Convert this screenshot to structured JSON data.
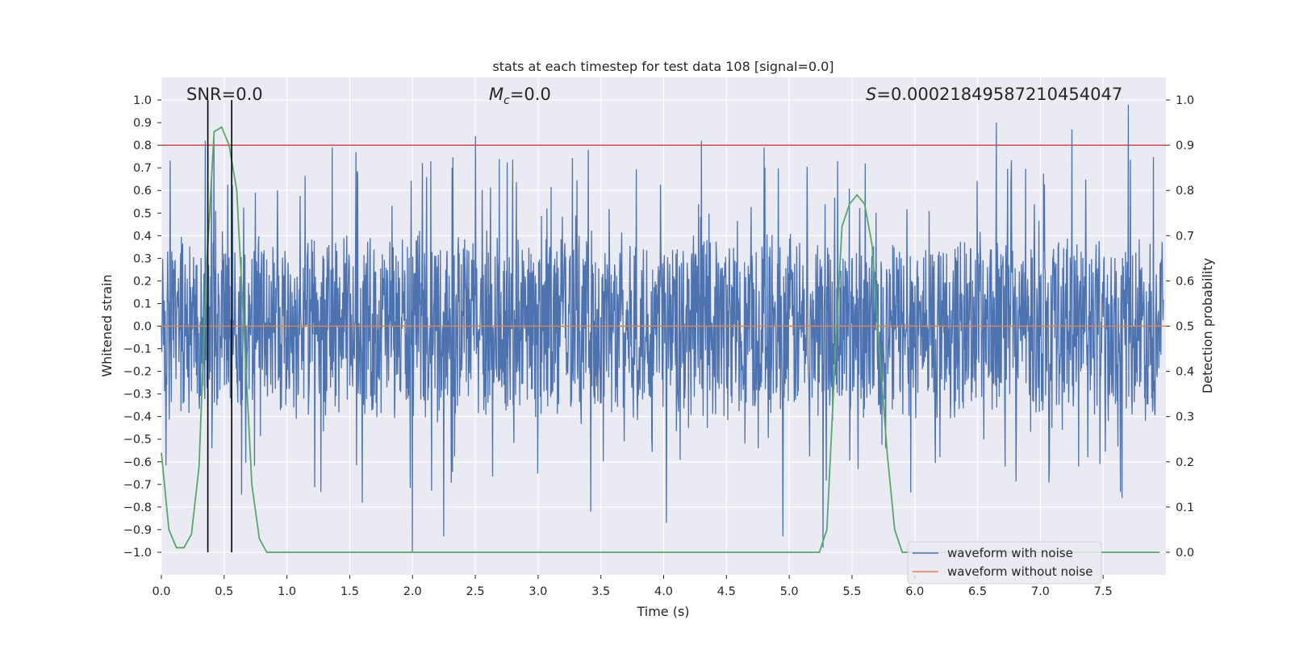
{
  "chart_data": {
    "type": "line",
    "title": "stats at each timestep for test data 108 [signal=0.0]",
    "xlabel": "Time (s)",
    "ylabel_left": "Whitened strain",
    "ylabel_right": "Detection probability",
    "xlim": [
      0.0,
      8.0
    ],
    "ylim_left": [
      -1.1,
      1.1
    ],
    "ylim_right": [
      -0.05,
      1.05
    ],
    "x_ticks": [
      "0.0",
      "0.5",
      "1.0",
      "1.5",
      "2.0",
      "2.5",
      "3.0",
      "3.5",
      "4.0",
      "4.5",
      "5.0",
      "5.5",
      "6.0",
      "6.5",
      "7.0",
      "7.5"
    ],
    "y_left_ticks": [
      "1.0",
      "0.9",
      "0.8",
      "0.7",
      "0.6",
      "0.5",
      "0.4",
      "0.3",
      "0.2",
      "0.1",
      "0.0",
      "−0.1",
      "−0.2",
      "−0.3",
      "−0.4",
      "−0.5",
      "−0.6",
      "−0.7",
      "−0.8",
      "−0.9",
      "−1.0"
    ],
    "y_right_ticks": [
      "1.0",
      "0.9",
      "0.8",
      "0.7",
      "0.6",
      "0.5",
      "0.4",
      "0.3",
      "0.2",
      "0.1",
      "0.0"
    ],
    "grid": true,
    "legend_position": "lower-right",
    "annotations": {
      "snr": "SNR=0.0",
      "mc_symbol": "M",
      "mc_sub": "c",
      "mc_value": "=0.0",
      "s_symbol": "S",
      "s_value": "=0.00021849587210454047"
    },
    "series": [
      {
        "name": "waveform with noise",
        "axis": "left",
        "color": "#4c72b0",
        "description_values": {
          "core_band": [
            -0.4,
            0.4
          ],
          "peaks": [
            {
              "x": 0.35,
              "y": 0.82
            },
            {
              "x": 0.42,
              "y": 0.86
            },
            {
              "x": 1.36,
              "y": 0.79
            },
            {
              "x": 1.55,
              "y": 0.77
            },
            {
              "x": 2.5,
              "y": 0.84
            },
            {
              "x": 3.4,
              "y": 0.78
            },
            {
              "x": 4.3,
              "y": 0.82
            },
            {
              "x": 4.8,
              "y": 0.79
            },
            {
              "x": 6.65,
              "y": 0.9
            },
            {
              "x": 7.25,
              "y": 0.87
            },
            {
              "x": 7.7,
              "y": 0.98
            }
          ],
          "troughs": [
            {
              "x": 2.0,
              "y": -1.0
            },
            {
              "x": 2.25,
              "y": -0.93
            },
            {
              "x": 1.6,
              "y": -0.78
            },
            {
              "x": 3.42,
              "y": -0.82
            },
            {
              "x": 4.02,
              "y": -0.87
            },
            {
              "x": 4.95,
              "y": -0.93
            },
            {
              "x": 5.27,
              "y": -0.98
            },
            {
              "x": 7.65,
              "y": -0.76
            }
          ]
        }
      },
      {
        "name": "waveform without noise",
        "axis": "left",
        "color": "#dd8452",
        "x": [
          0.0,
          8.0
        ],
        "y": [
          0.0,
          0.0
        ]
      },
      {
        "name": "",
        "axis": "right",
        "color": "#55a868",
        "x": [
          0.0,
          0.06,
          0.12,
          0.18,
          0.24,
          0.3,
          0.36,
          0.42,
          0.48,
          0.54,
          0.6,
          0.66,
          0.72,
          0.78,
          0.84,
          0.9,
          1.0,
          2.0,
          3.0,
          4.0,
          5.0,
          5.18,
          5.24,
          5.3,
          5.36,
          5.42,
          5.48,
          5.54,
          5.6,
          5.66,
          5.72,
          5.78,
          5.84,
          5.9,
          6.0,
          7.0,
          7.95
        ],
        "y": [
          0.22,
          0.05,
          0.01,
          0.01,
          0.04,
          0.19,
          0.63,
          0.93,
          0.94,
          0.9,
          0.8,
          0.48,
          0.15,
          0.03,
          0.0,
          0.0,
          0.0,
          0.0,
          0.0,
          0.0,
          0.0,
          0.0,
          0.0,
          0.05,
          0.4,
          0.72,
          0.77,
          0.79,
          0.77,
          0.68,
          0.44,
          0.22,
          0.05,
          0.0,
          0.0,
          0.0,
          0.0
        ]
      }
    ],
    "hlines": [
      {
        "axis": "right",
        "y": 0.9,
        "color": "#c44e52"
      }
    ],
    "vlines": [
      {
        "x": 0.37,
        "color": "#000000"
      },
      {
        "x": 0.56,
        "color": "#000000"
      }
    ]
  }
}
